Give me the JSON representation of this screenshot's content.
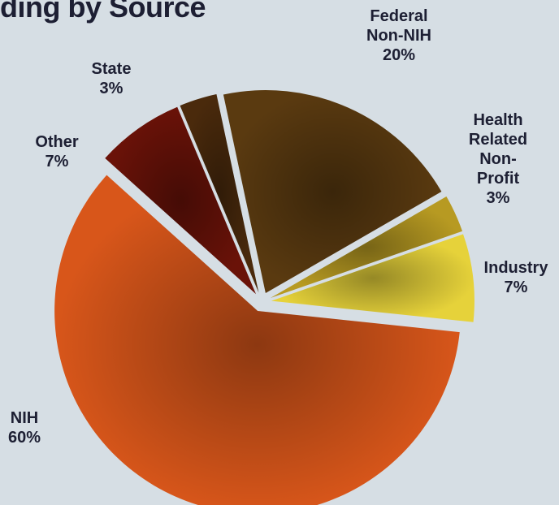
{
  "chart_data": {
    "type": "pie",
    "title": "ding by Source",
    "categories": [
      "Federal\nNon-NIH",
      "Health\nRelated\nNon-Profit",
      "Industry",
      "NIH",
      "Other",
      "State"
    ],
    "values": [
      20,
      3,
      7,
      60,
      7,
      3
    ],
    "value_labels": [
      "20%",
      "3%",
      "7%",
      "60%",
      "7%",
      "3%"
    ],
    "colors": [
      "#5a3a10",
      "#b79a22",
      "#e6d23a",
      "#d8561a",
      "#6a1208",
      "#4a2a0c"
    ]
  }
}
